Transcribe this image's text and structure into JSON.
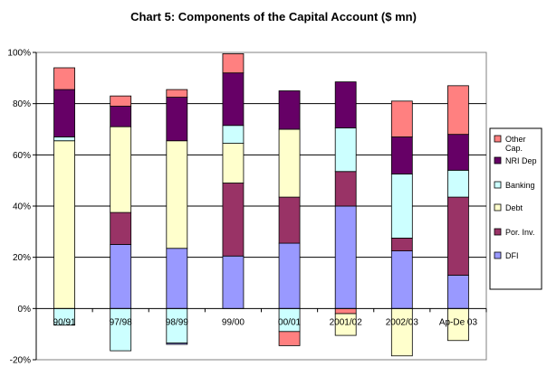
{
  "chart_data": {
    "type": "bar",
    "stacked": true,
    "title": "Chart 5: Components of the Capital Account ($ mn)",
    "xlabel": "",
    "ylabel": "",
    "ylim": [
      -20,
      100
    ],
    "yticks": [
      "-20%",
      "0%",
      "20%",
      "40%",
      "60%",
      "80%",
      "100%"
    ],
    "ytick_values": [
      -20,
      0,
      20,
      40,
      60,
      80,
      100
    ],
    "grid": true,
    "legend_position": "right",
    "categories": [
      "90/91",
      "97/98",
      "98/99",
      "99/00",
      "00/01",
      "2001/02",
      "2002/03",
      "Ap-De 03"
    ],
    "series": [
      {
        "name": "DFI",
        "color": "#9999ff",
        "values": [
          0.0,
          25.0,
          23.5,
          20.5,
          25.5,
          40.0,
          22.5,
          13.0
        ]
      },
      {
        "name": "Por. Inv.",
        "color": "#993366",
        "values": [
          0.0,
          12.5,
          0.0,
          28.5,
          18.0,
          13.5,
          5.0,
          30.5
        ]
      },
      {
        "name": "Debt",
        "color": "#ffffcc",
        "values": [
          65.5,
          33.5,
          42.0,
          15.5,
          26.5,
          0.0,
          0.0,
          0.0
        ]
      },
      {
        "name": "Banking",
        "color": "#ccffff",
        "values": [
          1.5,
          0.0,
          0.0,
          7.0,
          0.0,
          17.0,
          25.0,
          10.5
        ]
      },
      {
        "name": "NRI Dep",
        "color": "#660066",
        "values": [
          18.5,
          8.0,
          17.0,
          20.5,
          15.0,
          18.0,
          14.5,
          14.0
        ]
      },
      {
        "name": "Other Cap.",
        "color": "#ff8080",
        "values": [
          8.5,
          4.0,
          3.0,
          7.5,
          0.0,
          0.0,
          14.0,
          19.0
        ]
      }
    ],
    "negative_segments": [
      {
        "series": "Banking",
        "values": [
          -6.5,
          -16.5,
          -13.5,
          0.0,
          -9.0,
          0.0,
          0.0,
          0.0
        ]
      },
      {
        "series": "DFI",
        "values": [
          0.0,
          0.0,
          -0.5,
          0.0,
          0.0,
          0.0,
          0.0,
          0.0
        ]
      },
      {
        "series": "Other Cap.",
        "values": [
          0.0,
          0.0,
          0.0,
          0.0,
          -5.5,
          -2.0,
          0.0,
          0.0
        ]
      },
      {
        "series": "Debt",
        "values": [
          0.0,
          0.0,
          0.0,
          0.0,
          0.0,
          -8.5,
          -18.5,
          -12.5
        ]
      }
    ],
    "legend_order": [
      "Other Cap.",
      "NRI Dep",
      "Banking",
      "Debt",
      "Por. Inv.",
      "DFI"
    ],
    "legend_labels": [
      [
        "Other",
        "Cap."
      ],
      [
        "NRI Dep"
      ],
      [
        "Banking"
      ],
      [
        "Debt"
      ],
      [
        "Por. Inv."
      ],
      [
        "DFI"
      ]
    ]
  }
}
